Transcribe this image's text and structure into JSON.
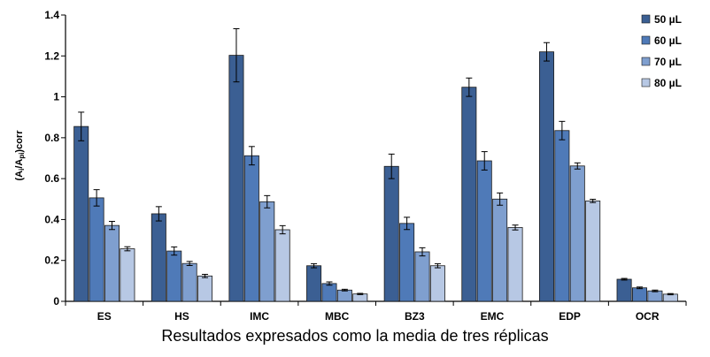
{
  "chart_data": {
    "type": "bar",
    "ylabel": "(Ai/Api)corr",
    "ylim": [
      0,
      1.4
    ],
    "yticks": [
      "0",
      "0.2",
      "0.4",
      "0.6",
      "0.8",
      "1",
      "1.2",
      "1.4"
    ],
    "grid": false,
    "legend_position": "top-right",
    "categories": [
      "ES",
      "HS",
      "IMC",
      "MBC",
      "BZ3",
      "EMC",
      "EDP",
      "OCR"
    ],
    "series": [
      {
        "name": "50 µL",
        "color": "#3b5f93",
        "values": [
          0.855,
          0.428,
          1.203,
          0.174,
          0.66,
          1.047,
          1.22,
          0.108
        ],
        "errors": [
          0.07,
          0.035,
          0.13,
          0.01,
          0.06,
          0.045,
          0.045,
          0.004
        ]
      },
      {
        "name": "60 µL",
        "color": "#4f7ab8",
        "values": [
          0.506,
          0.246,
          0.712,
          0.087,
          0.381,
          0.687,
          0.835,
          0.066
        ],
        "errors": [
          0.04,
          0.02,
          0.045,
          0.008,
          0.03,
          0.045,
          0.045,
          0.004
        ]
      },
      {
        "name": "70 µL",
        "color": "#7f9fcf",
        "values": [
          0.371,
          0.185,
          0.487,
          0.055,
          0.242,
          0.5,
          0.662,
          0.051
        ],
        "errors": [
          0.02,
          0.01,
          0.03,
          0.004,
          0.02,
          0.03,
          0.015,
          0.004
        ]
      },
      {
        "name": "80 µL",
        "color": "#b7c8e4",
        "values": [
          0.257,
          0.124,
          0.35,
          0.036,
          0.174,
          0.361,
          0.491,
          0.035
        ],
        "errors": [
          0.01,
          0.008,
          0.02,
          0.003,
          0.01,
          0.012,
          0.008,
          0.003
        ]
      }
    ]
  },
  "caption": "Resultados expresados como la media de tres réplicas"
}
